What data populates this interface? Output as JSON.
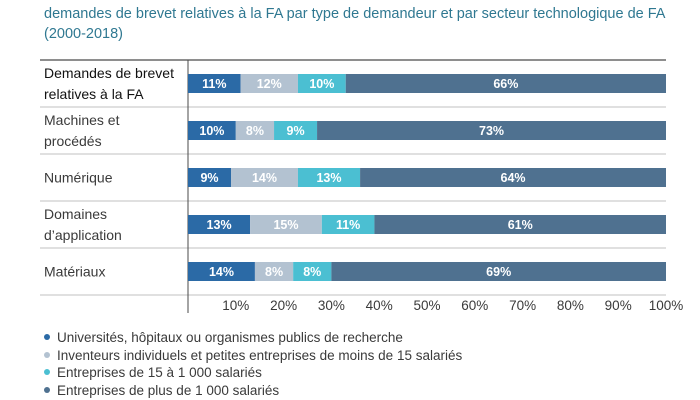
{
  "title": "demandes de brevet relatives à la FA par type de demandeur et par secteur technologique de FA (2000-2018)",
  "colors": [
    "#2b6aa6",
    "#b3c2d1",
    "#4bbfd2",
    "#4f7190"
  ],
  "chart_data": {
    "type": "bar",
    "orientation": "horizontal",
    "stacked": true,
    "categories": [
      [
        "Demandes de brevet",
        "relatives à la FA"
      ],
      [
        "Machines et",
        "procédés"
      ],
      [
        "Numérique"
      ],
      [
        "Domaines",
        "d’application"
      ],
      [
        "Matériaux"
      ]
    ],
    "series": [
      {
        "name": "Universités, hôpitaux ou organismes publics de recherche",
        "values": [
          11,
          10,
          9,
          13,
          14
        ]
      },
      {
        "name": "Inventeurs individuels et petites entreprises de moins de 15 salariés",
        "values": [
          12,
          8,
          14,
          15,
          8
        ]
      },
      {
        "name": "Entreprises de 15 à 1 000 salariés",
        "values": [
          10,
          9,
          13,
          11,
          8
        ]
      },
      {
        "name": "Entreprises de plus de 1 000 salariés",
        "values": [
          66,
          73,
          64,
          61,
          69
        ]
      }
    ],
    "xticks": [
      "10%",
      "20%",
      "30%",
      "40%",
      "50%",
      "60%",
      "70%",
      "80%",
      "90%",
      "100%"
    ],
    "xlim": [
      0,
      100
    ],
    "legend_position": "bottom"
  }
}
